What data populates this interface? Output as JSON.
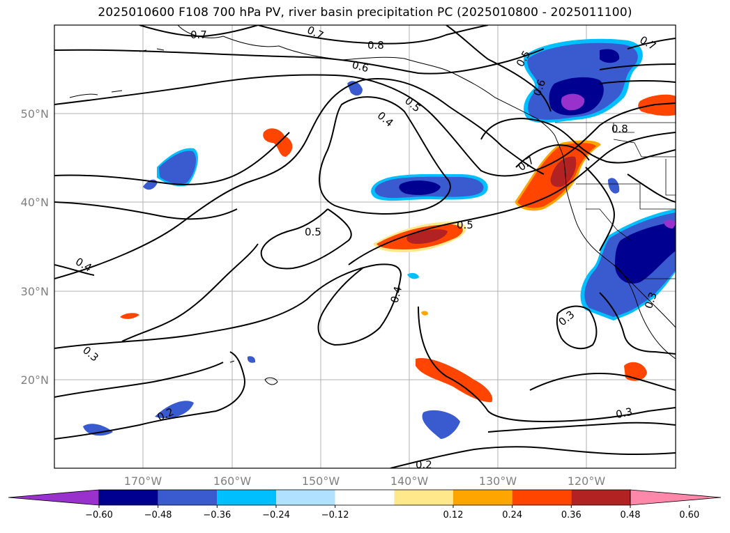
{
  "title": "2025010600 F108 700 hPa PV, river basin precipitation PC (2025010800 - 2025011100)",
  "lat_labels": [
    "50°N",
    "40°N",
    "30°N",
    "20°N"
  ],
  "lon_labels": [
    "170°W",
    "160°W",
    "150°W",
    "140°W",
    "130°W",
    "120°W"
  ],
  "contour_labels": [
    "0.7",
    "0.7",
    "0.8",
    "0.6",
    "0.5",
    "0.6",
    "0.7",
    "0.5",
    "0.4",
    "0.5",
    "0.7",
    "0.8",
    "0.5",
    "0.4",
    "0.4",
    "0.3",
    "0.3",
    "0.3",
    "0.2",
    "0.3",
    "0.2"
  ],
  "colorbar": {
    "ticks": [
      "−0.60",
      "−0.48",
      "−0.36",
      "−0.24",
      "−0.12",
      "0.12",
      "0.24",
      "0.36",
      "0.48",
      "0.60"
    ],
    "colors": [
      "#9932CC",
      "#000090",
      "#3A5BD0",
      "#00BFFF",
      "#B0E2FF",
      "#FFFFFF",
      "#FFE88C",
      "#FFA500",
      "#FF4500",
      "#B22222",
      "#FF88AA"
    ]
  }
}
